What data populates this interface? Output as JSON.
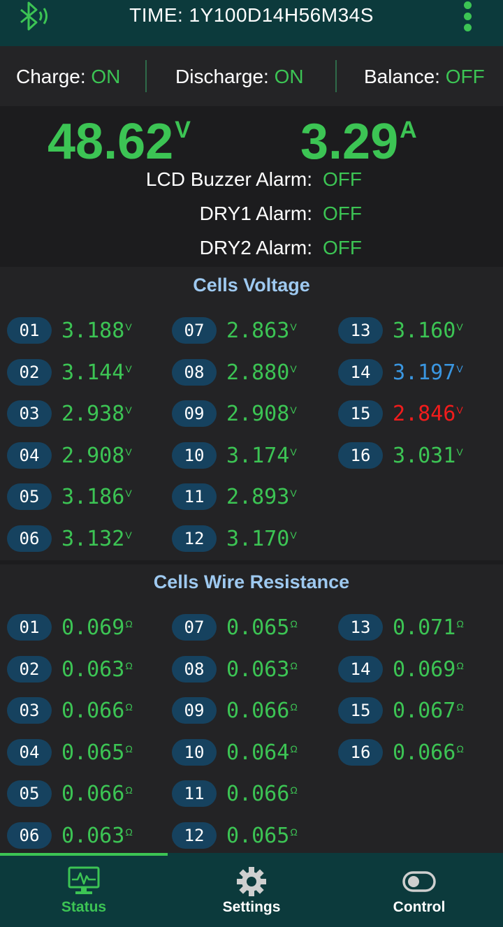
{
  "header": {
    "time": "TIME: 1Y100D14H56M34S"
  },
  "status": {
    "charge_label": "Charge: ",
    "charge_value": "ON",
    "discharge_label": "Discharge: ",
    "discharge_value": "ON",
    "balance_label": "Balance: ",
    "balance_value": "OFF"
  },
  "readings": {
    "voltage": "48.62",
    "voltage_unit": "V",
    "current": "3.29",
    "current_unit": "A"
  },
  "alarms": [
    {
      "label": "LCD Buzzer Alarm:",
      "value": "OFF"
    },
    {
      "label": "DRY1 Alarm:",
      "value": "OFF"
    },
    {
      "label": "DRY2 Alarm:",
      "value": "OFF"
    }
  ],
  "cells_voltage": {
    "title": "Cells Voltage",
    "unit": "V",
    "cells": [
      {
        "id": "01",
        "value": "3.188",
        "color": "#3cc454"
      },
      {
        "id": "02",
        "value": "3.144",
        "color": "#3cc454"
      },
      {
        "id": "03",
        "value": "2.938",
        "color": "#3cc454"
      },
      {
        "id": "04",
        "value": "2.908",
        "color": "#3cc454"
      },
      {
        "id": "05",
        "value": "3.186",
        "color": "#3cc454"
      },
      {
        "id": "06",
        "value": "3.132",
        "color": "#3cc454"
      },
      {
        "id": "07",
        "value": "2.863",
        "color": "#3cc454"
      },
      {
        "id": "08",
        "value": "2.880",
        "color": "#3cc454"
      },
      {
        "id": "09",
        "value": "2.908",
        "color": "#3cc454"
      },
      {
        "id": "10",
        "value": "3.174",
        "color": "#3cc454"
      },
      {
        "id": "11",
        "value": "2.893",
        "color": "#3cc454"
      },
      {
        "id": "12",
        "value": "3.170",
        "color": "#3cc454"
      },
      {
        "id": "13",
        "value": "3.160",
        "color": "#3cc454"
      },
      {
        "id": "14",
        "value": "3.197",
        "color": "#3a96e0"
      },
      {
        "id": "15",
        "value": "2.846",
        "color": "#f01c1c"
      },
      {
        "id": "16",
        "value": "3.031",
        "color": "#3cc454"
      }
    ]
  },
  "cells_resistance": {
    "title": "Cells Wire Resistance",
    "unit": "Ω",
    "cells": [
      {
        "id": "01",
        "value": "0.069"
      },
      {
        "id": "02",
        "value": "0.063"
      },
      {
        "id": "03",
        "value": "0.066"
      },
      {
        "id": "04",
        "value": "0.065"
      },
      {
        "id": "05",
        "value": "0.066"
      },
      {
        "id": "06",
        "value": "0.063"
      },
      {
        "id": "07",
        "value": "0.065"
      },
      {
        "id": "08",
        "value": "0.063"
      },
      {
        "id": "09",
        "value": "0.066"
      },
      {
        "id": "10",
        "value": "0.064"
      },
      {
        "id": "11",
        "value": "0.066"
      },
      {
        "id": "12",
        "value": "0.065"
      },
      {
        "id": "13",
        "value": "0.071"
      },
      {
        "id": "14",
        "value": "0.069"
      },
      {
        "id": "15",
        "value": "0.067"
      },
      {
        "id": "16",
        "value": "0.066"
      }
    ]
  },
  "nav": {
    "active": "status",
    "items": [
      {
        "key": "status",
        "label": "Status",
        "icon": "monitor-pulse-icon"
      },
      {
        "key": "settings",
        "label": "Settings",
        "icon": "gear-icon"
      },
      {
        "key": "control",
        "label": "Control",
        "icon": "toggle-icon"
      }
    ]
  },
  "colors": {
    "accent": "#3cc454",
    "header_bg": "#0c3a3c",
    "title_blue": "#9ec9f0",
    "pill_bg": "#16425f"
  }
}
